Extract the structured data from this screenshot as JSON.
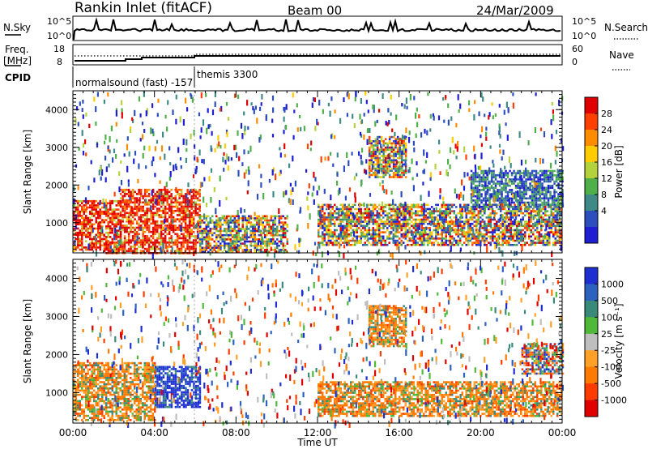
{
  "header": {
    "station": "Rankin Inlet (fitACF)",
    "beam": "Beam 00",
    "date": "24/Mar/2009"
  },
  "nsky_panel": {
    "left_label": "N.Sky",
    "left_ticks": [
      "10^5",
      "10^0"
    ],
    "right_label": "N.Search",
    "right_ticks": [
      "10^5",
      "10^0"
    ]
  },
  "freq_panel": {
    "left_label_1": "Freq.",
    "left_label_2": "[MHz]",
    "left_ticks": [
      "18",
      "8"
    ],
    "right_label": "Nave",
    "right_ticks": [
      "60",
      "0"
    ]
  },
  "cpid": {
    "label": "CPID",
    "segments": [
      {
        "name": "normalsound (fast) -157",
        "start_hour": 0
      },
      {
        "name": "themis 3300",
        "start_hour": 6
      }
    ]
  },
  "chart_data": [
    {
      "type": "heatmap",
      "panel": "power",
      "ylabel": "Slant Range [km]",
      "xlabel": "Time UT",
      "xlim_hours": [
        0,
        24
      ],
      "ylim_km": [
        200,
        4500
      ],
      "x_tick_labels": [
        "00:00",
        "04:00",
        "08:00",
        "12:00",
        "16:00",
        "20:00",
        "00:00"
      ],
      "y_tick_labels": [
        "1000",
        "2000",
        "3000",
        "4000"
      ],
      "y_ticks_km": [
        1000,
        2000,
        3000,
        4000
      ],
      "colorbar": {
        "label": "Power [dB]",
        "tick_labels": [
          "4",
          "8",
          "12",
          "16",
          "20",
          "24",
          "28"
        ],
        "colors_low_to_high": [
          "#1e1ed2",
          "#2d4fbe",
          "#3f8a86",
          "#4fb04a",
          "#b4d23c",
          "#ffcc00",
          "#ff8c00",
          "#ff4000",
          "#e00000"
        ]
      },
      "echo_regions": [
        {
          "t": [
            0.0,
            2.3
          ],
          "r": [
            300,
            1600
          ],
          "value": "high"
        },
        {
          "t": [
            2.3,
            6.2
          ],
          "r": [
            500,
            1900
          ],
          "value": "high"
        },
        {
          "t": [
            1.5,
            6.0
          ],
          "r": [
            200,
            500
          ],
          "value": "high"
        },
        {
          "t": [
            6.2,
            10.5
          ],
          "r": [
            200,
            1200
          ],
          "value": "mixed"
        },
        {
          "t": [
            12.0,
            24.0
          ],
          "r": [
            400,
            1500
          ],
          "value": "mixed"
        },
        {
          "t": [
            14.5,
            16.3
          ],
          "r": [
            2200,
            3300
          ],
          "value": "mixed"
        },
        {
          "t": [
            19.5,
            24.0
          ],
          "r": [
            1400,
            2400
          ],
          "value": "low"
        }
      ]
    },
    {
      "type": "heatmap",
      "panel": "velocity",
      "ylabel": "Slant Range [km]",
      "xlabel": "Time UT",
      "xlim_hours": [
        0,
        24
      ],
      "ylim_km": [
        200,
        4500
      ],
      "x_tick_labels": [
        "00:00",
        "04:00",
        "08:00",
        "12:00",
        "16:00",
        "20:00",
        "00:00"
      ],
      "y_tick_labels": [
        "1000",
        "2000",
        "3000",
        "4000"
      ],
      "y_ticks_km": [
        1000,
        2000,
        3000,
        4000
      ],
      "colorbar": {
        "label": "Velocity [m s⁻¹]",
        "tick_labels": [
          "1000",
          "500",
          "100",
          "25",
          "-25",
          "-100",
          "-500",
          "-1000"
        ],
        "colors_high_to_low": [
          "#1e2fd2",
          "#2b62c0",
          "#3a8a7a",
          "#4fba3a",
          "#bebebe",
          "#ffa028",
          "#ff7a00",
          "#ff3c00",
          "#e00000"
        ]
      },
      "echo_regions": [
        {
          "t": [
            4.0,
            6.2
          ],
          "r": [
            600,
            1700
          ],
          "value": "toward"
        },
        {
          "t": [
            0.0,
            4.0
          ],
          "r": [
            300,
            1800
          ],
          "value": "away"
        },
        {
          "t": [
            12.0,
            24.0
          ],
          "r": [
            400,
            1300
          ],
          "value": "away"
        },
        {
          "t": [
            14.5,
            16.3
          ],
          "r": [
            2200,
            3300
          ],
          "value": "away"
        },
        {
          "t": [
            22.0,
            24.0
          ],
          "r": [
            1500,
            2300
          ],
          "value": "mixed"
        }
      ]
    }
  ]
}
